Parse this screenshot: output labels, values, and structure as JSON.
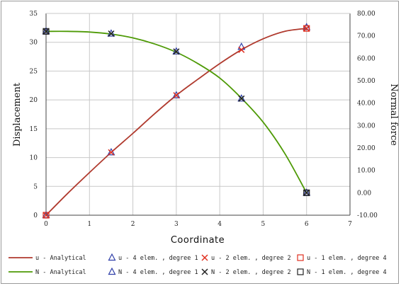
{
  "chart_data": {
    "type": "line",
    "xlabel": "Coordinate",
    "ylabel": "Displacement",
    "y2label": "Normal force",
    "xlim": [
      0,
      7
    ],
    "ylim": [
      0,
      35
    ],
    "y2lim": [
      -10,
      80
    ],
    "x_ticks": [
      "0",
      "1",
      "2",
      "3",
      "4",
      "5",
      "6",
      "7"
    ],
    "y_ticks": [
      "0",
      "5",
      "10",
      "15",
      "20",
      "25",
      "30",
      "35"
    ],
    "y2_ticks": [
      "-10.00",
      "0.00",
      "10.00",
      "20.00",
      "30.00",
      "40.00",
      "50.00",
      "60.00",
      "70.00",
      "80.00"
    ],
    "grid": true,
    "legend_position": "bottom",
    "series": [
      {
        "name": "u - Analytical",
        "axis": "left",
        "kind": "curve",
        "marker": "none",
        "color": "#b03a2e",
        "x": [
          0,
          0.5,
          1,
          1.5,
          2,
          2.5,
          3,
          3.5,
          4,
          4.5,
          5,
          5.5,
          6
        ],
        "y": [
          0,
          3.8,
          7.4,
          10.9,
          14.2,
          17.6,
          20.8,
          23.6,
          26.3,
          28.7,
          30.6,
          31.9,
          32.4
        ]
      },
      {
        "name": "N - Analytical",
        "axis": "right",
        "kind": "curve",
        "marker": "none",
        "color": "#4e9a06",
        "x": [
          0,
          0.5,
          1,
          1.5,
          2,
          2.5,
          3,
          3.5,
          4,
          4.5,
          5,
          5.5,
          6
        ],
        "y": [
          72,
          72,
          71.7,
          70.8,
          69.1,
          66.4,
          62.7,
          57.6,
          51.2,
          42.2,
          31.5,
          17.5,
          0
        ]
      },
      {
        "name": "u - 4 elem. , degree 1",
        "axis": "left",
        "kind": "points",
        "marker": "triangle",
        "color": "#2f3fa8",
        "x": [
          0,
          1.5,
          3,
          4.5,
          6
        ],
        "y": [
          0,
          10.9,
          20.8,
          29.2,
          32.6
        ]
      },
      {
        "name": "u - 2 elem. , degree 2",
        "axis": "left",
        "kind": "points",
        "marker": "x",
        "color": "#e03020",
        "x": [
          0,
          1.5,
          3,
          4.5,
          6
        ],
        "y": [
          0,
          10.9,
          20.8,
          28.7,
          32.4
        ]
      },
      {
        "name": "u - 1 elem. , degree 4",
        "axis": "left",
        "kind": "points",
        "marker": "square",
        "color": "#e03020",
        "x": [
          0,
          6
        ],
        "y": [
          0,
          32.4
        ]
      },
      {
        "name": "N - 4 elem. , degree 1",
        "axis": "right",
        "kind": "points",
        "marker": "triangle",
        "color": "#2f3fa8",
        "x": [
          0,
          1.5,
          3,
          4.5,
          6
        ],
        "y": [
          72,
          71,
          63,
          42,
          0
        ]
      },
      {
        "name": "N - 2 elem. , degree 2",
        "axis": "right",
        "kind": "points",
        "marker": "x",
        "color": "#222222",
        "x": [
          0,
          1.5,
          3,
          4.5,
          6
        ],
        "y": [
          72,
          71,
          63,
          42,
          0
        ]
      },
      {
        "name": "N - 1 elem. , degree 4",
        "axis": "right",
        "kind": "points",
        "marker": "square",
        "color": "#222222",
        "x": [
          0,
          6
        ],
        "y": [
          72,
          0
        ]
      }
    ]
  },
  "legend": {
    "row1": [
      "u - Analytical",
      "u - 4 elem. , degree 1",
      "u - 2 elem. , degree 2",
      "u - 1 elem. , degree 4"
    ],
    "row2": [
      "N - Analytical",
      "N - 4 elem. , degree 1",
      "N - 2 elem. , degree 2",
      "N - 1 elem. , degree 4"
    ]
  }
}
